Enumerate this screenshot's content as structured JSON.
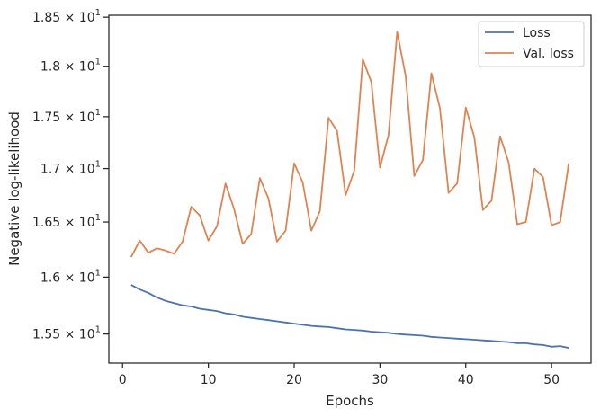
{
  "chart_data": {
    "type": "line",
    "title": "",
    "xlabel": "Epochs",
    "ylabel": "Negative log-likelihood",
    "xlim": [
      -1.6,
      54.6
    ],
    "ylim": [
      15.25,
      18.52
    ],
    "y_scale": "log",
    "grid": false,
    "legend_position": "top-right",
    "x_ticks": [
      0,
      10,
      20,
      30,
      40,
      50
    ],
    "x_tick_labels": [
      "0",
      "10",
      "20",
      "30",
      "40",
      "50"
    ],
    "y_ticks": [
      15.5,
      16.0,
      16.5,
      17.0,
      17.5,
      18.0,
      18.5
    ],
    "y_tick_labels": [
      {
        "mantissa": "1.55",
        "times": "×",
        "base": "10",
        "exp": "1"
      },
      {
        "mantissa": "1.6",
        "times": "×",
        "base": "10",
        "exp": "1"
      },
      {
        "mantissa": "1.65",
        "times": "×",
        "base": "10",
        "exp": "1"
      },
      {
        "mantissa": "1.7",
        "times": "×",
        "base": "10",
        "exp": "1"
      },
      {
        "mantissa": "1.75",
        "times": "×",
        "base": "10",
        "exp": "1"
      },
      {
        "mantissa": "1.8",
        "times": "×",
        "base": "10",
        "exp": "1"
      },
      {
        "mantissa": "1.85",
        "times": "×",
        "base": "10",
        "exp": "1"
      }
    ],
    "x": [
      1,
      2,
      3,
      4,
      5,
      6,
      7,
      8,
      9,
      10,
      11,
      12,
      13,
      14,
      15,
      16,
      17,
      18,
      19,
      20,
      21,
      22,
      23,
      24,
      25,
      26,
      27,
      28,
      29,
      30,
      31,
      32,
      33,
      34,
      35,
      36,
      37,
      38,
      39,
      40,
      41,
      42,
      43,
      44,
      45,
      46,
      47,
      48,
      49,
      50,
      51,
      52
    ],
    "series": [
      {
        "name": "Loss",
        "color": "#4c72b0",
        "values": [
          15.93,
          15.89,
          15.86,
          15.82,
          15.79,
          15.77,
          15.75,
          15.74,
          15.72,
          15.71,
          15.7,
          15.68,
          15.67,
          15.65,
          15.64,
          15.63,
          15.62,
          15.61,
          15.6,
          15.59,
          15.58,
          15.57,
          15.565,
          15.56,
          15.55,
          15.54,
          15.535,
          15.53,
          15.52,
          15.515,
          15.51,
          15.5,
          15.495,
          15.49,
          15.485,
          15.475,
          15.47,
          15.465,
          15.46,
          15.455,
          15.45,
          15.445,
          15.44,
          15.435,
          15.43,
          15.42,
          15.42,
          15.41,
          15.405,
          15.39,
          15.395,
          15.38
        ]
      },
      {
        "name": "Val. loss",
        "color": "#dd8452",
        "values": [
          16.18,
          16.33,
          16.22,
          16.26,
          16.24,
          16.21,
          16.32,
          16.64,
          16.56,
          16.33,
          16.46,
          16.86,
          16.62,
          16.3,
          16.39,
          16.91,
          16.72,
          16.32,
          16.42,
          17.05,
          16.87,
          16.42,
          16.6,
          17.49,
          17.36,
          16.75,
          16.98,
          18.07,
          17.84,
          17.01,
          17.32,
          18.35,
          17.9,
          16.93,
          17.08,
          17.93,
          17.58,
          16.77,
          16.86,
          17.59,
          17.3,
          16.61,
          16.7,
          17.31,
          17.06,
          16.48,
          16.5,
          17.0,
          16.92,
          16.47,
          16.5,
          17.05
        ]
      }
    ]
  }
}
